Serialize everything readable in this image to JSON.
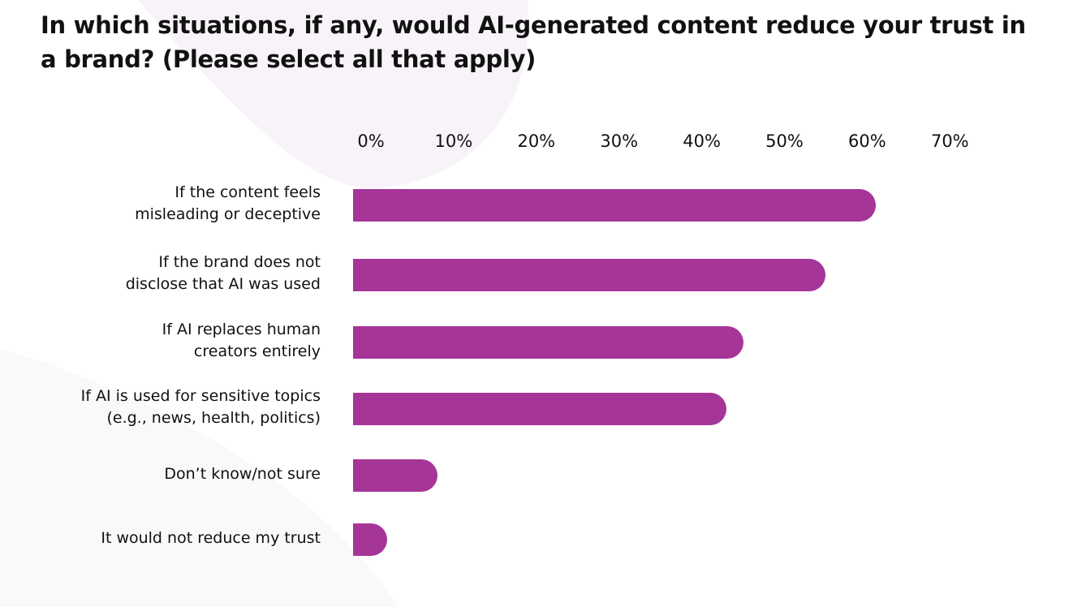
{
  "chart_data": {
    "type": "bar",
    "orientation": "horizontal",
    "title": "In which situations, if any, would AI-generated content reduce your trust in a brand? (Please select all that apply)",
    "xlabel": "",
    "ylabel": "",
    "xlim": [
      0,
      70
    ],
    "x_ticks": [
      "0%",
      "10%",
      "20%",
      "30%",
      "40%",
      "50%",
      "60%",
      "70%"
    ],
    "tick_placement": "top",
    "grid": false,
    "categories": [
      [
        "If the content feels",
        "misleading or deceptive"
      ],
      [
        "If the brand does not",
        "disclose that AI was used"
      ],
      [
        "If AI replaces human",
        "creators entirely"
      ],
      [
        "If AI is used for sensitive topics",
        "(e.g., news, health, politics)"
      ],
      [
        "Don’t know/not sure"
      ],
      [
        "It would not reduce my trust"
      ]
    ],
    "values": [
      61,
      55,
      45,
      43,
      8,
      2
    ],
    "unit": "%",
    "bar_color": "#A63598"
  }
}
